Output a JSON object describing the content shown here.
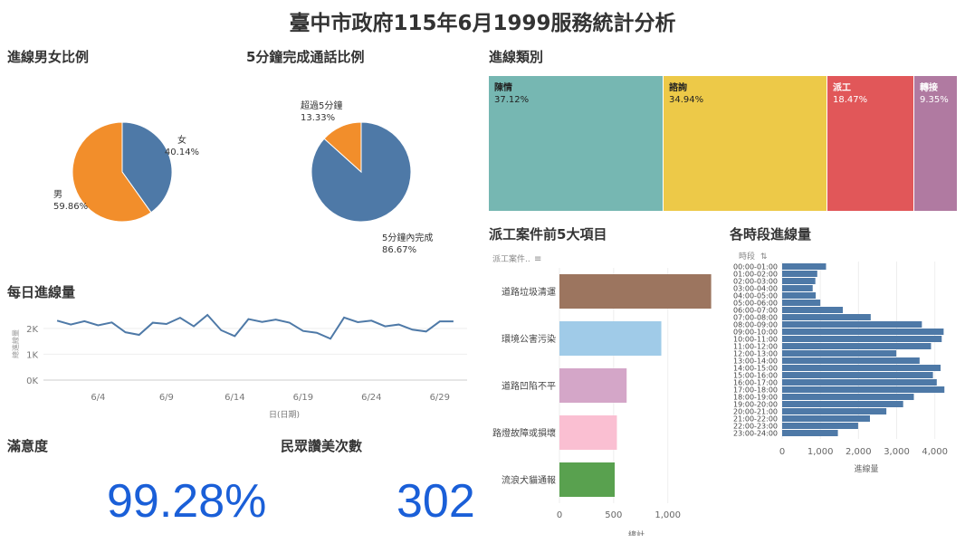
{
  "title": "臺中市政府115年6月1999服務統計分析",
  "sections": {
    "gender": "進線男女比例",
    "five_min": "5分鐘完成通話比例",
    "category": "進線類別",
    "daily": "每日進線量",
    "dispatch_top5": "派工案件前5大項目",
    "hourly": "各時段進線量",
    "satisfaction": "滿意度",
    "praise": "民眾讚美次數"
  },
  "kpis": {
    "satisfaction": "99.28%",
    "praise": "302"
  },
  "colors": {
    "blue": "#4e79a7",
    "orange": "#f28e2b",
    "kpi": "#1a5fd8",
    "teal": "#76b7b2",
    "yellow": "#edc948",
    "red": "#e15759",
    "purple": "#b07aa1",
    "brown": "#9c755f",
    "lightblue": "#a0cbe8",
    "lilac": "#d4a6c8",
    "pink": "#fabfd2",
    "green": "#59a14f"
  },
  "chart_data": [
    {
      "id": "gender",
      "type": "pie",
      "slices": [
        {
          "name": "女",
          "value": 40.14,
          "label": "40.14%",
          "color": "#4e79a7"
        },
        {
          "name": "男",
          "value": 59.86,
          "label": "59.86%",
          "color": "#f28e2b"
        }
      ]
    },
    {
      "id": "five_min",
      "type": "pie",
      "slices": [
        {
          "name": "5分鐘內完成",
          "value": 86.67,
          "label": "86.67%",
          "color": "#4e79a7"
        },
        {
          "name": "超過5分鐘",
          "value": 13.33,
          "label": "13.33%",
          "color": "#f28e2b"
        }
      ]
    },
    {
      "id": "category",
      "type": "treemap",
      "items": [
        {
          "name": "陳情",
          "value": 37.12,
          "label": "37.12%",
          "color": "#76b7b2"
        },
        {
          "name": "諮詢",
          "value": 34.94,
          "label": "34.94%",
          "color": "#edc948"
        },
        {
          "name": "派工",
          "value": 18.47,
          "label": "18.47%",
          "color": "#e15759"
        },
        {
          "name": "轉接",
          "value": 9.35,
          "label": "9.35%",
          "color": "#b07aa1"
        }
      ]
    },
    {
      "id": "daily",
      "type": "line",
      "xlabel": "日(日期)",
      "ylabel": "總進線量",
      "x": [
        1,
        2,
        3,
        4,
        5,
        6,
        7,
        8,
        9,
        10,
        11,
        12,
        13,
        14,
        15,
        16,
        17,
        18,
        19,
        20,
        21,
        22,
        23,
        24,
        25,
        26,
        27,
        28,
        29,
        30
      ],
      "y": [
        2300,
        2150,
        2280,
        2120,
        2230,
        1850,
        1750,
        2220,
        2170,
        2410,
        2080,
        2520,
        1930,
        1700,
        2360,
        2250,
        2340,
        2220,
        1900,
        1830,
        1600,
        2420,
        2240,
        2300,
        2080,
        2150,
        1950,
        1880,
        2270,
        2270
      ],
      "xticks": [
        4,
        9,
        14,
        19,
        24,
        29
      ],
      "xtick_labels": [
        "6/4",
        "6/9",
        "6/14",
        "6/19",
        "6/24",
        "6/29"
      ],
      "yticks": [
        0,
        1000,
        2000
      ],
      "ytick_labels": [
        "0K",
        "1K",
        "2K"
      ],
      "ylim": [
        0,
        2800
      ]
    },
    {
      "id": "dispatch_top5",
      "type": "bar",
      "orientation": "horizontal",
      "header": "派工案件..",
      "xlabel": "總計",
      "categories": [
        "道路垃圾清運",
        "環境公害污染",
        "道路凹陷不平",
        "路燈故障或損壞",
        "流浪犬貓通報"
      ],
      "values": [
        1400,
        940,
        620,
        530,
        510
      ],
      "colors": [
        "#9c755f",
        "#a0cbe8",
        "#d4a6c8",
        "#fabfd2",
        "#59a14f"
      ],
      "xticks": [
        0,
        500,
        1000
      ],
      "xtick_labels": [
        "0",
        "500",
        "1,000"
      ],
      "xlim": [
        0,
        1420
      ]
    },
    {
      "id": "hourly",
      "type": "bar",
      "orientation": "horizontal",
      "header": "時段",
      "xlabel": "進線量",
      "categories": [
        "00:00-01:00",
        "01:00-02:00",
        "02:00-03:00",
        "03:00-04:00",
        "04:00-05:00",
        "05:00-06:00",
        "06:00-07:00",
        "07:00-08:00",
        "08:00-09:00",
        "09:00-10:00",
        "10:00-11:00",
        "11:00-12:00",
        "12:00-13:00",
        "13:00-14:00",
        "14:00-15:00",
        "15:00-16:00",
        "16:00-17:00",
        "17:00-18:00",
        "18:00-19:00",
        "19:00-20:00",
        "20:00-21:00",
        "21:00-22:00",
        "22:00-23:00",
        "23:00-24:00"
      ],
      "values": [
        1150,
        920,
        870,
        800,
        880,
        1000,
        1590,
        2320,
        3660,
        4230,
        4180,
        3900,
        2990,
        3600,
        4150,
        3950,
        4050,
        4250,
        3450,
        3170,
        2730,
        2300,
        1990,
        1460
      ],
      "color": "#4e79a7",
      "xticks": [
        0,
        1000,
        2000,
        3000,
        4000
      ],
      "xtick_labels": [
        "0",
        "1,000",
        "2,000",
        "3,000",
        "4,000"
      ],
      "xlim": [
        0,
        4600
      ]
    }
  ]
}
